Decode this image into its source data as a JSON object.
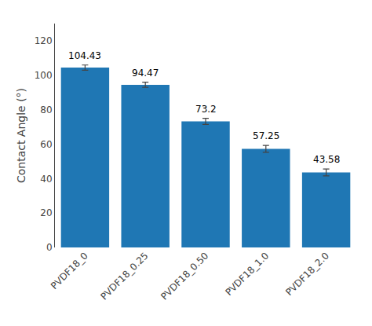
{
  "chart_data": {
    "type": "bar",
    "categories": [
      "PVDF18_0",
      "PVDF18_0.25",
      "PVDF18_0.50",
      "PVDF18_1.0",
      "PVDF18_2.0"
    ],
    "values": [
      104.43,
      94.47,
      73.2,
      57.25,
      43.58
    ],
    "errors": [
      1.5,
      1.5,
      1.8,
      2.0,
      2.0
    ],
    "ylabel": "Contact Angle (°)",
    "ylim": [
      0,
      130
    ],
    "yticks": [
      0,
      20,
      40,
      60,
      80,
      100,
      120
    ],
    "grid": false,
    "data_labels": true
  }
}
